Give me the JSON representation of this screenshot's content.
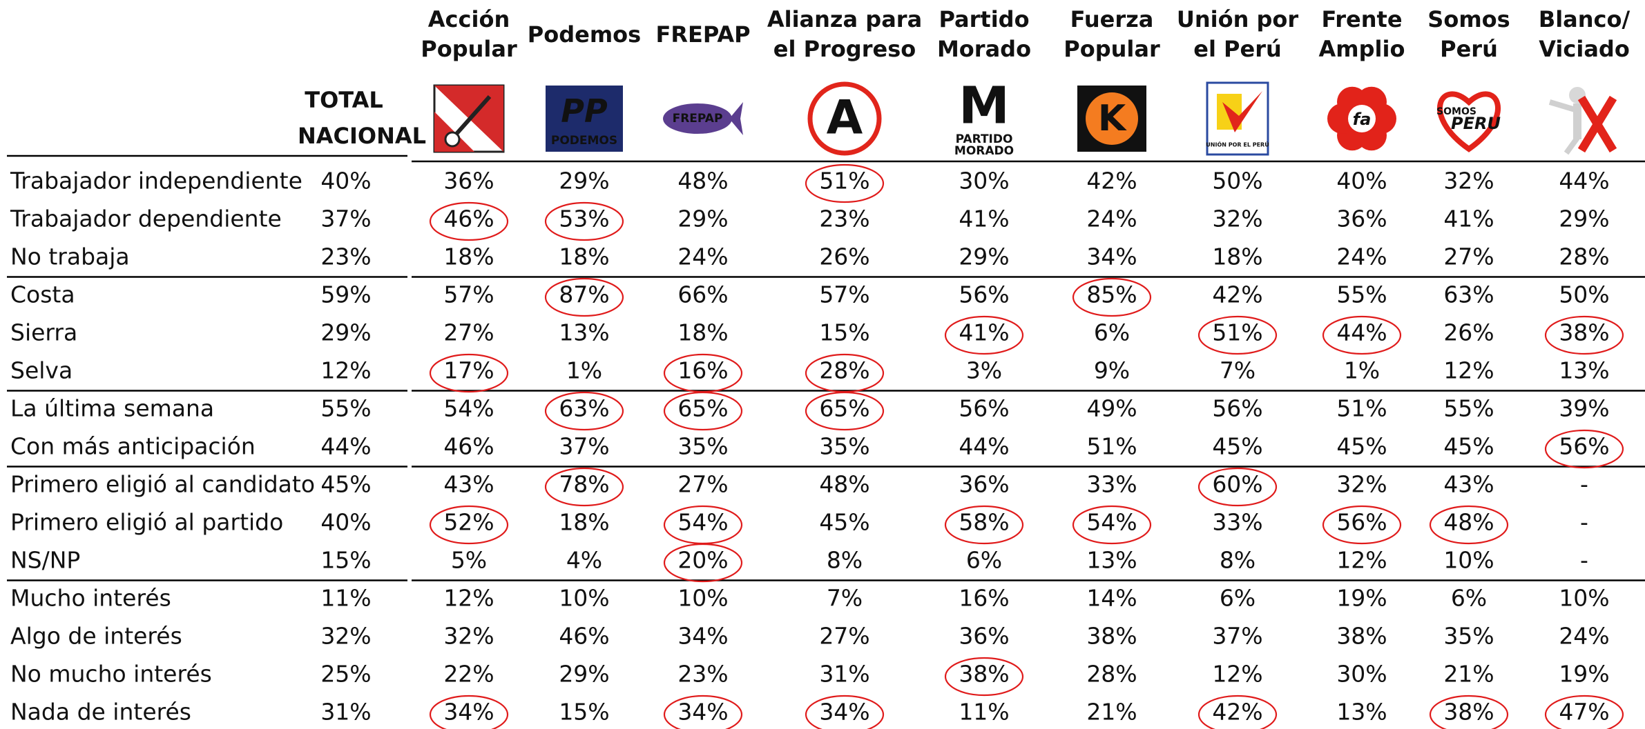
{
  "table": {
    "columns": [
      {
        "title": [
          "TOTAL",
          "NACIONAL"
        ]
      },
      {
        "title": [
          "Acción",
          "Popular"
        ]
      },
      {
        "title": [
          "Podemos"
        ],
        "logo_text": [
          "PP",
          "PODEMOS"
        ]
      },
      {
        "title": [
          "FREPAP"
        ],
        "logo_text": [
          "FREPAP"
        ]
      },
      {
        "title": [
          "Alianza para",
          "el Progreso"
        ],
        "logo_text": [
          "A"
        ]
      },
      {
        "title": [
          "Partido",
          "Morado"
        ],
        "logo_text": [
          "M",
          "PARTIDO",
          "MORADO"
        ]
      },
      {
        "title": [
          "Fuerza",
          "Popular"
        ],
        "logo_text": [
          "K"
        ]
      },
      {
        "title": [
          "Unión por",
          "el Perú"
        ],
        "logo_text": [
          "UNIÓN POR EL PERÚ"
        ]
      },
      {
        "title": [
          "Frente",
          "Amplio"
        ],
        "logo_text": [
          "fa"
        ]
      },
      {
        "title": [
          "Somos",
          "Perú"
        ],
        "logo_text": [
          "SOMOS",
          "PERU"
        ]
      },
      {
        "title": [
          "Blanco/",
          "Viciado"
        ]
      }
    ],
    "groups": [
      [
        {
          "label": "Trabajador independiente",
          "cells": [
            "40%",
            "36%",
            "29%",
            "48%",
            "51%",
            "30%",
            "42%",
            "50%",
            "40%",
            "32%",
            "44%"
          ]
        },
        {
          "label": "Trabajador dependiente",
          "cells": [
            "37%",
            "46%",
            "53%",
            "29%",
            "23%",
            "41%",
            "24%",
            "32%",
            "36%",
            "41%",
            "29%"
          ]
        },
        {
          "label": "No trabaja",
          "cells": [
            "23%",
            "18%",
            "18%",
            "24%",
            "26%",
            "29%",
            "34%",
            "18%",
            "24%",
            "27%",
            "28%"
          ]
        }
      ],
      [
        {
          "label": "Costa",
          "cells": [
            "59%",
            "57%",
            "87%",
            "66%",
            "57%",
            "56%",
            "85%",
            "42%",
            "55%",
            "63%",
            "50%"
          ]
        },
        {
          "label": "Sierra",
          "cells": [
            "29%",
            "27%",
            "13%",
            "18%",
            "15%",
            "41%",
            "6%",
            "51%",
            "44%",
            "26%",
            "38%"
          ]
        },
        {
          "label": "Selva",
          "cells": [
            "12%",
            "17%",
            "1%",
            "16%",
            "28%",
            "3%",
            "9%",
            "7%",
            "1%",
            "12%",
            "13%"
          ]
        }
      ],
      [
        {
          "label": "La última semana",
          "cells": [
            "55%",
            "54%",
            "63%",
            "65%",
            "65%",
            "56%",
            "49%",
            "56%",
            "51%",
            "55%",
            "39%"
          ]
        },
        {
          "label": "Con más anticipación",
          "cells": [
            "44%",
            "46%",
            "37%",
            "35%",
            "35%",
            "44%",
            "51%",
            "45%",
            "45%",
            "45%",
            "56%"
          ]
        }
      ],
      [
        {
          "label": "Primero eligió al candidato",
          "cells": [
            "45%",
            "43%",
            "78%",
            "27%",
            "48%",
            "36%",
            "33%",
            "60%",
            "32%",
            "43%",
            "-"
          ]
        },
        {
          "label": "Primero eligió al partido",
          "cells": [
            "40%",
            "52%",
            "18%",
            "54%",
            "45%",
            "58%",
            "54%",
            "33%",
            "56%",
            "48%",
            "-"
          ]
        },
        {
          "label": "NS/NP",
          "cells": [
            "15%",
            "5%",
            "4%",
            "20%",
            "8%",
            "6%",
            "13%",
            "8%",
            "12%",
            "10%",
            "-"
          ]
        }
      ],
      [
        {
          "label": "Mucho interés",
          "cells": [
            "11%",
            "12%",
            "10%",
            "10%",
            "7%",
            "16%",
            "14%",
            "6%",
            "19%",
            "6%",
            "10%"
          ]
        },
        {
          "label": "Algo de interés",
          "cells": [
            "32%",
            "32%",
            "46%",
            "34%",
            "27%",
            "36%",
            "38%",
            "37%",
            "38%",
            "35%",
            "24%"
          ]
        },
        {
          "label": "No mucho interés",
          "cells": [
            "25%",
            "22%",
            "29%",
            "23%",
            "31%",
            "38%",
            "28%",
            "12%",
            "30%",
            "21%",
            "19%"
          ]
        },
        {
          "label": "Nada de interés",
          "cells": [
            "31%",
            "34%",
            "15%",
            "34%",
            "34%",
            "11%",
            "21%",
            "42%",
            "13%",
            "38%",
            "47%"
          ]
        }
      ]
    ]
  }
}
